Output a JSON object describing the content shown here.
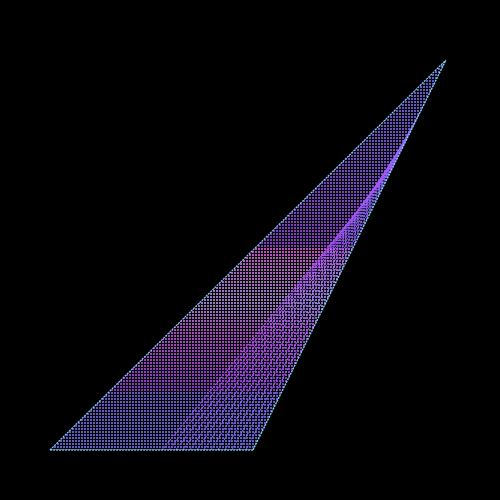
{
  "scene": {
    "background_color": "#000000",
    "shape": "triangle",
    "pattern": "dashed-horizontal-lines",
    "palette": {
      "edge": "#7fd8ff",
      "blue": "#7f7fff",
      "violet": "#b04cff",
      "magenta": "#e060ff",
      "pink": "#ff66ff",
      "light": "#c8a8ff"
    }
  }
}
